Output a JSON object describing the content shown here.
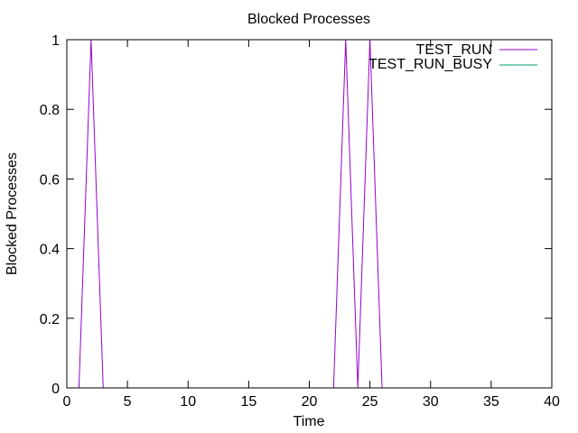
{
  "colors": {
    "TEST_RUN": "#9400d3",
    "TEST_RUN_BUSY": "#009e73",
    "axis": "#000000",
    "background": "#ffffff"
  },
  "chart_data": {
    "type": "line",
    "title": "Blocked Processes",
    "xlabel": "Time",
    "ylabel": "Blocked Processes",
    "xlim": [
      0,
      40
    ],
    "ylim": [
      0,
      1
    ],
    "xticks": [
      0,
      5,
      10,
      15,
      20,
      25,
      30,
      35,
      40
    ],
    "yticks": [
      0,
      0.2,
      0.4,
      0.6,
      0.8,
      1
    ],
    "xtick_labels": [
      "0",
      "5",
      "10",
      "15",
      "20",
      "25",
      "30",
      "35",
      "40"
    ],
    "ytick_labels": [
      "0",
      "0.2",
      "0.4",
      "0.6",
      "0.8",
      "1"
    ],
    "grid": false,
    "legend_position": "top-right",
    "series": [
      {
        "name": "TEST_RUN",
        "color": "#9400d3",
        "x": [
          0,
          1,
          2,
          3,
          4,
          5,
          6,
          7,
          8,
          9,
          10,
          11,
          12,
          13,
          14,
          15,
          16,
          17,
          18,
          19,
          20,
          21,
          22,
          23,
          24,
          25,
          26,
          27,
          28,
          29,
          30,
          31,
          32,
          33,
          34,
          35,
          36,
          37,
          38,
          39,
          40
        ],
        "y": [
          0,
          0,
          1,
          0,
          0,
          0,
          0,
          0,
          0,
          0,
          0,
          0,
          0,
          0,
          0,
          0,
          0,
          0,
          0,
          0,
          0,
          0,
          0,
          1,
          0,
          1,
          0,
          0,
          0,
          0,
          0,
          0,
          0,
          0,
          0,
          0,
          0,
          0,
          0,
          0,
          0
        ]
      },
      {
        "name": "TEST_RUN_BUSY",
        "color": "#009e73",
        "x": [],
        "y": []
      }
    ]
  }
}
